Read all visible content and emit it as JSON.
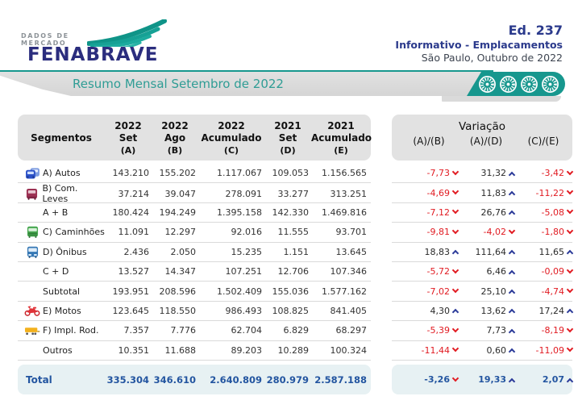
{
  "logo": {
    "tagline_line1": "DADOS DE",
    "tagline_line2": "MERCADO",
    "brand": "FENABRAVE"
  },
  "masthead": {
    "edition": "Ed. 237",
    "subtitle": "Informativo - Emplacamentos",
    "place_date": "São Paulo, Outubro de 2022"
  },
  "title_bar": {
    "title": "Resumo Mensal Setembro de 2022"
  },
  "colors": {
    "accent_teal": "#17978e",
    "brand_navy": "#2b2d7e",
    "masthead_navy": "#2b3a8c",
    "negative_red": "#e11b22",
    "positive_arrow_blue": "#2b3a99",
    "total_text_blue": "#2355a0",
    "total_row_bg": "#e7f1f3",
    "header_gray": "#e2e2e2"
  },
  "table": {
    "header": {
      "segment_label": "Segmentos",
      "cols": [
        {
          "year": "2022",
          "month": "Set",
          "letter": "(A)"
        },
        {
          "year": "2022",
          "month": "Ago",
          "letter": "(B)"
        },
        {
          "year": "2022",
          "month": "Acumulado",
          "letter": "(C)"
        },
        {
          "year": "2021",
          "month": "Set",
          "letter": "(D)"
        },
        {
          "year": "2021",
          "month": "Acumulado",
          "letter": "(E)"
        }
      ]
    },
    "variation": {
      "title": "Variação",
      "cols": [
        "(A)/(B)",
        "(A)/(D)",
        "(C)/(E)"
      ]
    },
    "rows": [
      {
        "segment": "A) Autos",
        "icon": "cars-icon",
        "values": [
          "143.210",
          "155.202",
          "1.117.067",
          "109.053",
          "1.156.565"
        ],
        "variations": [
          {
            "value": "-7,73",
            "dir": "down"
          },
          {
            "value": "31,32",
            "dir": "up"
          },
          {
            "value": "-3,42",
            "dir": "down"
          }
        ]
      },
      {
        "segment": "B) Com. Leves",
        "icon": "van-icon",
        "values": [
          "37.214",
          "39.047",
          "278.091",
          "33.277",
          "313.251"
        ],
        "variations": [
          {
            "value": "-4,69",
            "dir": "down"
          },
          {
            "value": "11,83",
            "dir": "up"
          },
          {
            "value": "-11,22",
            "dir": "down"
          }
        ]
      },
      {
        "segment": "A + B",
        "icon": null,
        "values": [
          "180.424",
          "194.249",
          "1.395.158",
          "142.330",
          "1.469.816"
        ],
        "variations": [
          {
            "value": "-7,12",
            "dir": "down"
          },
          {
            "value": "26,76",
            "dir": "up"
          },
          {
            "value": "-5,08",
            "dir": "down"
          }
        ]
      },
      {
        "segment": "C) Caminhões",
        "icon": "truck-icon",
        "values": [
          "11.091",
          "12.297",
          "92.016",
          "11.555",
          "93.701"
        ],
        "variations": [
          {
            "value": "-9,81",
            "dir": "down"
          },
          {
            "value": "-4,02",
            "dir": "down"
          },
          {
            "value": "-1,80",
            "dir": "down"
          }
        ]
      },
      {
        "segment": "D) Ônibus",
        "icon": "bus-icon",
        "values": [
          "2.436",
          "2.050",
          "15.235",
          "1.151",
          "13.645"
        ],
        "variations": [
          {
            "value": "18,83",
            "dir": "up"
          },
          {
            "value": "111,64",
            "dir": "up"
          },
          {
            "value": "11,65",
            "dir": "up"
          }
        ]
      },
      {
        "segment": "C + D",
        "icon": null,
        "values": [
          "13.527",
          "14.347",
          "107.251",
          "12.706",
          "107.346"
        ],
        "variations": [
          {
            "value": "-5,72",
            "dir": "down"
          },
          {
            "value": "6,46",
            "dir": "up"
          },
          {
            "value": "-0,09",
            "dir": "down"
          }
        ]
      },
      {
        "segment": "Subtotal",
        "icon": null,
        "values": [
          "193.951",
          "208.596",
          "1.502.409",
          "155.036",
          "1.577.162"
        ],
        "variations": [
          {
            "value": "-7,02",
            "dir": "down"
          },
          {
            "value": "25,10",
            "dir": "up"
          },
          {
            "value": "-4,74",
            "dir": "down"
          }
        ]
      },
      {
        "segment": "E) Motos",
        "icon": "motorcycle-icon",
        "values": [
          "123.645",
          "118.550",
          "986.493",
          "108.825",
          "841.405"
        ],
        "variations": [
          {
            "value": "4,30",
            "dir": "up"
          },
          {
            "value": "13,62",
            "dir": "up"
          },
          {
            "value": "17,24",
            "dir": "up"
          }
        ]
      },
      {
        "segment": "F) Impl. Rod.",
        "icon": "trailer-icon",
        "values": [
          "7.357",
          "7.776",
          "62.704",
          "6.829",
          "68.297"
        ],
        "variations": [
          {
            "value": "-5,39",
            "dir": "down"
          },
          {
            "value": "7,73",
            "dir": "up"
          },
          {
            "value": "-8,19",
            "dir": "down"
          }
        ]
      },
      {
        "segment": "Outros",
        "icon": null,
        "values": [
          "10.351",
          "11.688",
          "89.203",
          "10.289",
          "100.324"
        ],
        "variations": [
          {
            "value": "-11,44",
            "dir": "down"
          },
          {
            "value": "0,60",
            "dir": "up"
          },
          {
            "value": "-11,09",
            "dir": "down"
          }
        ]
      }
    ],
    "total": {
      "segment": "Total",
      "values": [
        "335.304",
        "346.610",
        "2.640.809",
        "280.979",
        "2.587.188"
      ],
      "variations": [
        {
          "value": "-3,26",
          "dir": "down"
        },
        {
          "value": "19,33",
          "dir": "up"
        },
        {
          "value": "2,07",
          "dir": "up"
        }
      ]
    }
  }
}
